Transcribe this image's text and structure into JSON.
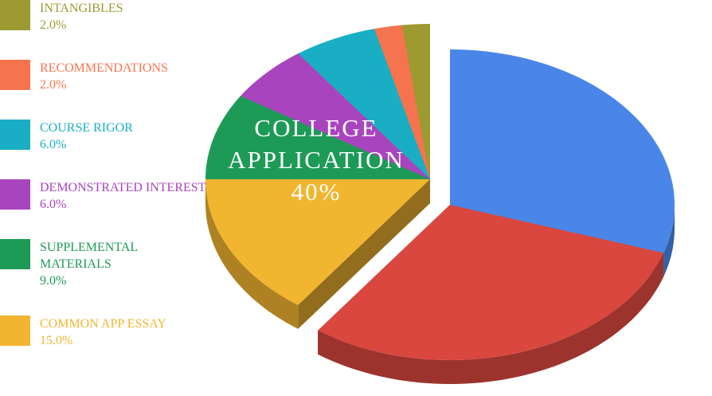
{
  "chart_data": {
    "type": "pie3d",
    "categories": [
      "INTANGIBLES",
      "RECOMMENDATIONS",
      "COURSE RIGOR",
      "DEMONSTRATED INTEREST",
      "SUPPLEMENTAL MATERIALS",
      "COMMON APP ESSAY",
      null,
      null
    ],
    "values": [
      2,
      2,
      6,
      6,
      9,
      15,
      30,
      30
    ],
    "value_labels": [
      "2.0%",
      "2.0%",
      "6.0%",
      "6.0%",
      "9.0%",
      "15.0%",
      null,
      null
    ],
    "colors": [
      "#9c9a30",
      "#f5744d",
      "#1aaec4",
      "#a944bf",
      "#1e9a57",
      "#f2b530",
      "#d9473f",
      "#4a86e8"
    ],
    "annotation": [
      "COLLEGE",
      "APPLICATION",
      "40%"
    ]
  }
}
